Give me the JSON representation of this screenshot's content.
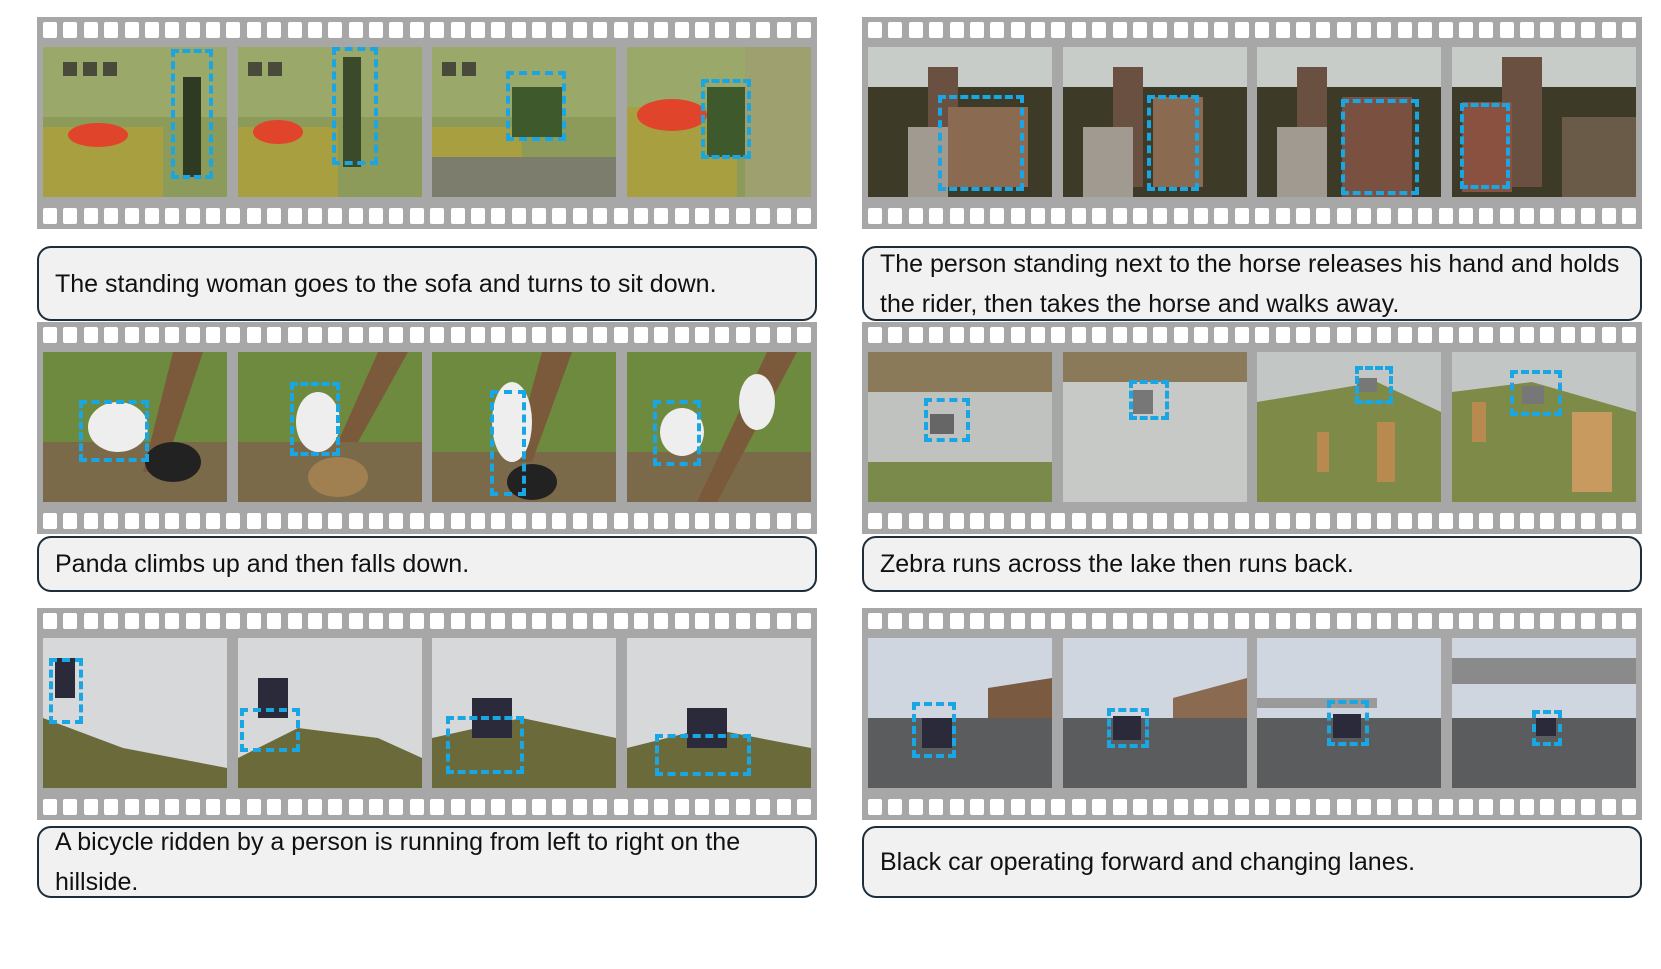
{
  "panels": [
    {
      "caption": "The standing woman goes to the sofa and turns to sit down.",
      "subject_icon": "person-icon"
    },
    {
      "caption": "The person standing next to the horse releases his hand and holds the rider, then takes the horse and walks away.",
      "subject_icon": "person-icon"
    },
    {
      "caption": "Panda climbs up and then falls down.",
      "subject_icon": "panda-icon"
    },
    {
      "caption": "Zebra runs across the lake then runs back.",
      "subject_icon": "zebra-icon"
    },
    {
      "caption": "A bicycle ridden by a person is running from left to right on the hillside.",
      "subject_icon": "bicycle-icon"
    },
    {
      "caption": "Black car operating forward and changing lanes.",
      "subject_icon": "car-icon"
    }
  ],
  "colors": {
    "film_strip": "#a7a7a7",
    "bounding_box": "#19a6e3",
    "caption_border": "#1e2d3a",
    "caption_fill": "#f1f1f1"
  }
}
